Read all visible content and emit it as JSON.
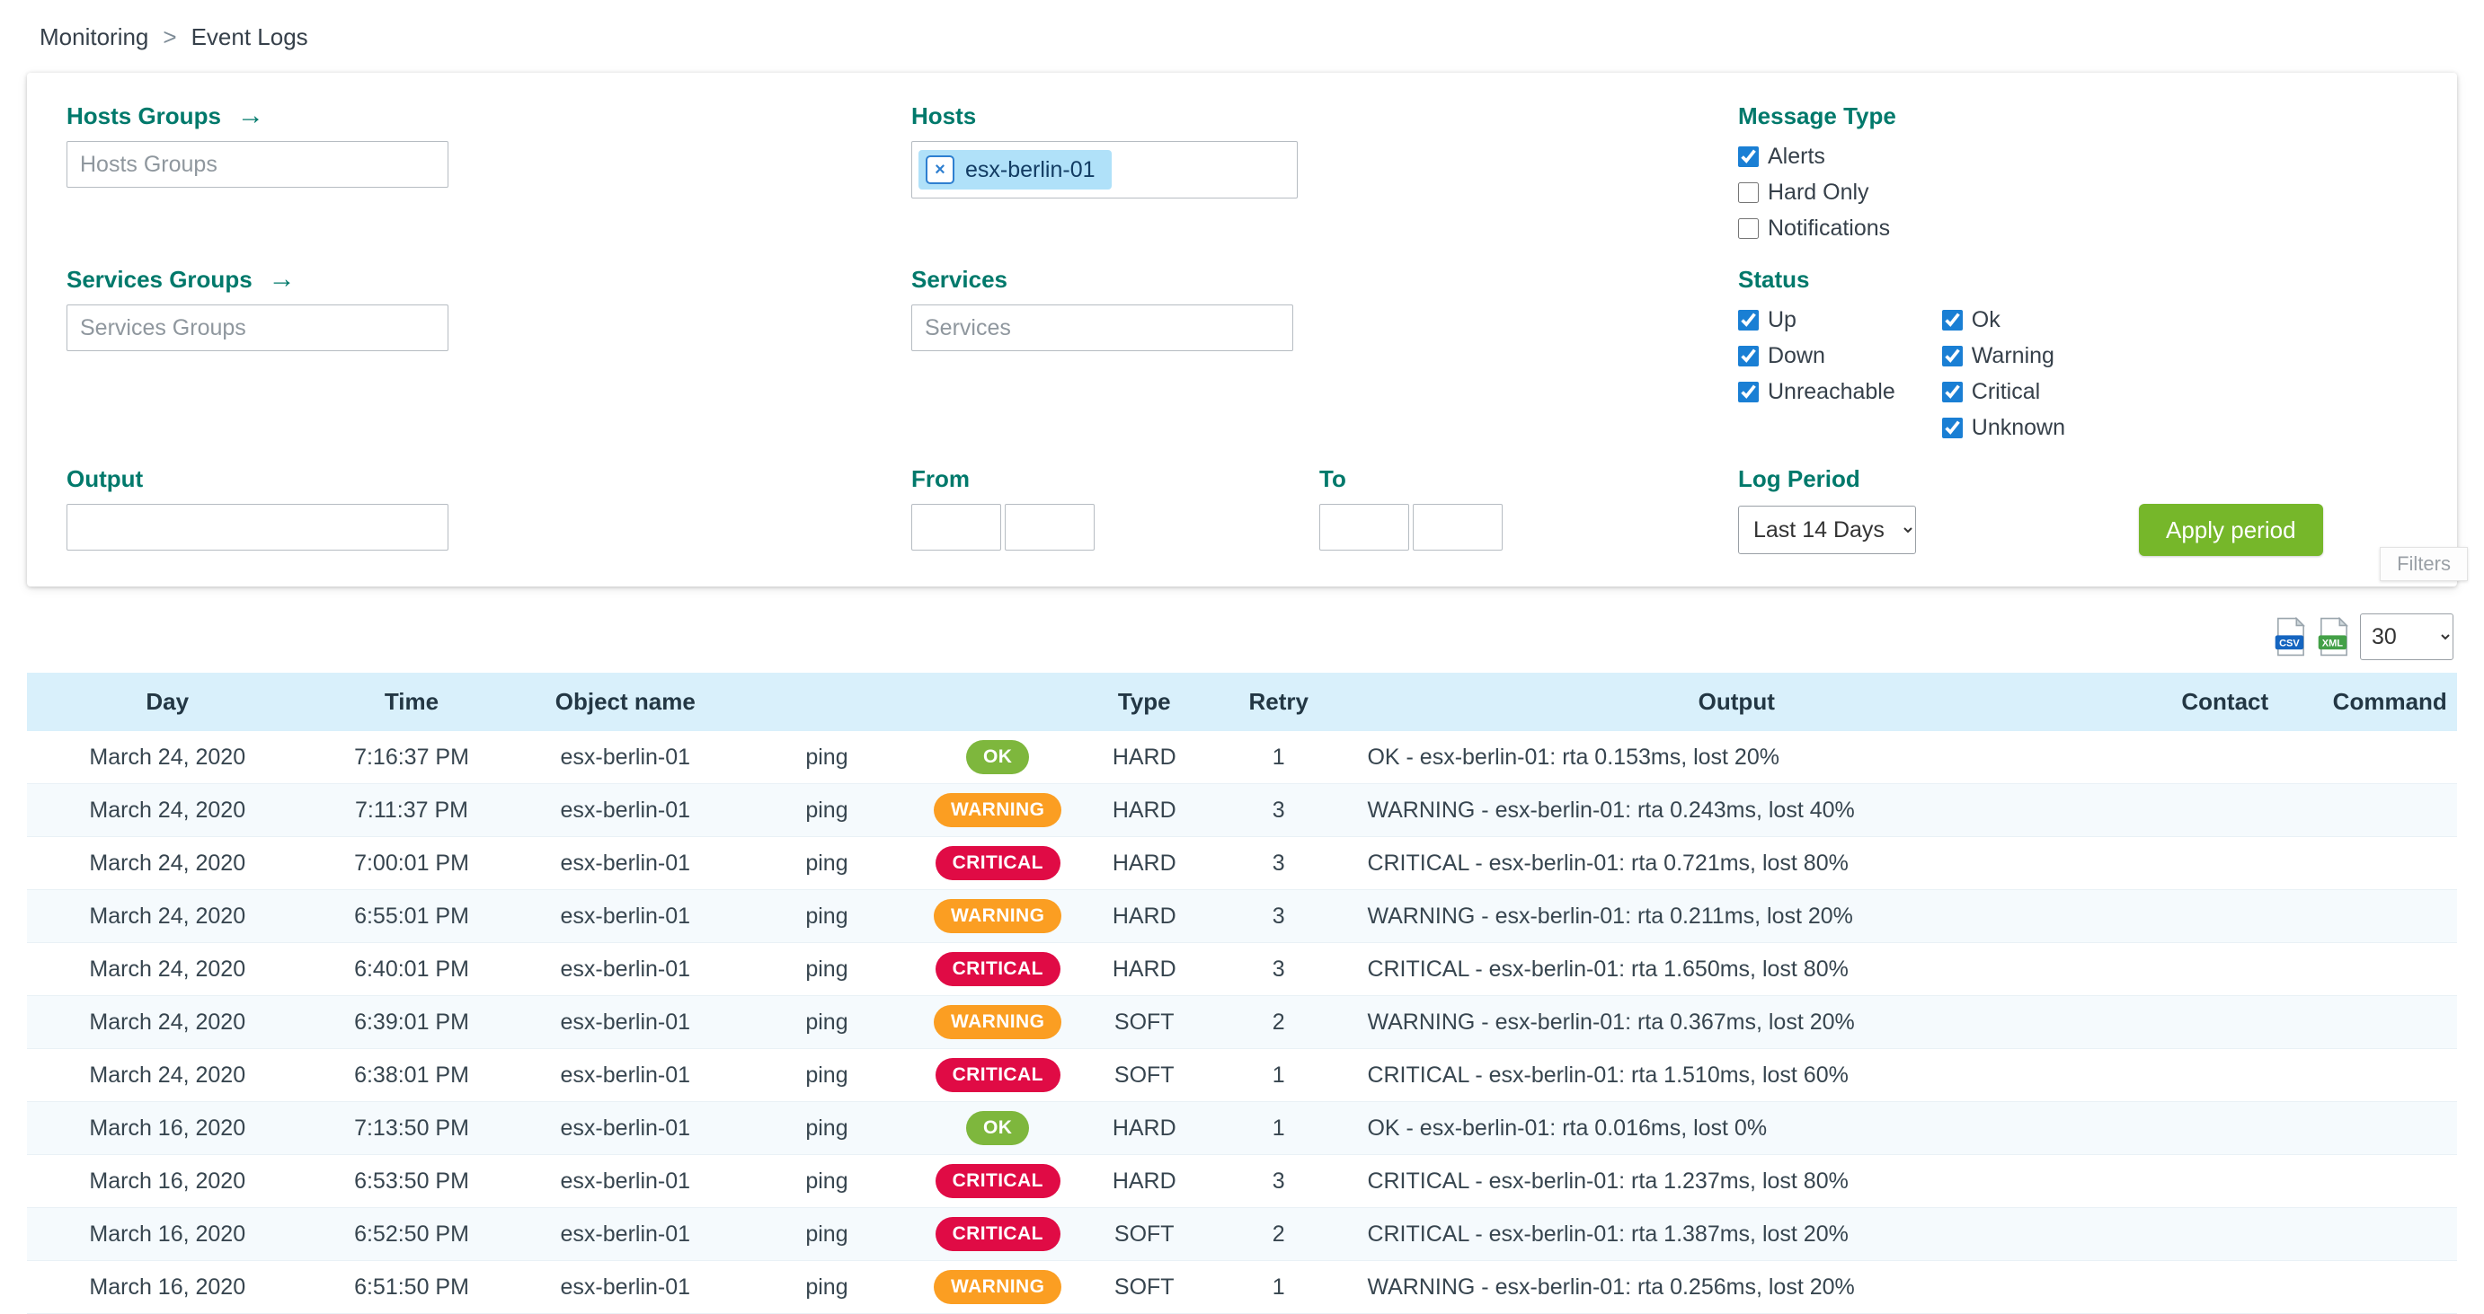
{
  "breadcrumb": {
    "section": "Monitoring",
    "separator": ">",
    "page": "Event Logs"
  },
  "icons": {
    "arrow_right": "→",
    "remove": "×"
  },
  "filter_panel": {
    "hosts_groups": {
      "label": "Hosts Groups",
      "placeholder": "Hosts Groups"
    },
    "services_groups": {
      "label": "Services Groups",
      "placeholder": "Services Groups"
    },
    "output_filter": {
      "label": "Output",
      "value": ""
    },
    "hosts": {
      "label": "Hosts",
      "chips": [
        {
          "text": "esx-berlin-01"
        }
      ]
    },
    "services": {
      "label": "Services",
      "placeholder": "Services"
    },
    "from": {
      "label": "From"
    },
    "to": {
      "label": "To"
    },
    "message_type": {
      "heading": "Message Type",
      "options": [
        {
          "label": "Alerts",
          "checked": true
        },
        {
          "label": "Hard Only",
          "checked": false
        },
        {
          "label": "Notifications",
          "checked": false
        }
      ]
    },
    "status": {
      "heading": "Status",
      "col1": [
        {
          "label": "Up",
          "checked": true
        },
        {
          "label": "Down",
          "checked": true
        },
        {
          "label": "Unreachable",
          "checked": true
        }
      ],
      "col2": [
        {
          "label": "Ok",
          "checked": true
        },
        {
          "label": "Warning",
          "checked": true
        },
        {
          "label": "Critical",
          "checked": true
        },
        {
          "label": "Unknown",
          "checked": true
        }
      ]
    },
    "log_period": {
      "label": "Log Period",
      "selected": "Last 14 Days"
    },
    "apply_button_label": "Apply period",
    "filters_tab_label": "Filters"
  },
  "toolbar": {
    "export_csv": "CSV",
    "export_xml": "XML",
    "page_size": "30"
  },
  "table": {
    "headers": [
      "Day",
      "Time",
      "Object name",
      "",
      "",
      "Type",
      "Retry",
      "Output",
      "Contact",
      "Command"
    ],
    "rows": [
      {
        "day": "March 24, 2020",
        "time": "7:16:37 PM",
        "object": "esx-berlin-01",
        "service": "ping",
        "status": "OK",
        "type": "HARD",
        "retry": "1",
        "output": "OK - esx-berlin-01: rta 0.153ms, lost 20%",
        "contact": "",
        "command": ""
      },
      {
        "day": "March 24, 2020",
        "time": "7:11:37 PM",
        "object": "esx-berlin-01",
        "service": "ping",
        "status": "WARNING",
        "type": "HARD",
        "retry": "3",
        "output": "WARNING - esx-berlin-01: rta 0.243ms, lost 40%",
        "contact": "",
        "command": ""
      },
      {
        "day": "March 24, 2020",
        "time": "7:00:01 PM",
        "object": "esx-berlin-01",
        "service": "ping",
        "status": "CRITICAL",
        "type": "HARD",
        "retry": "3",
        "output": "CRITICAL - esx-berlin-01: rta 0.721ms, lost 80%",
        "contact": "",
        "command": ""
      },
      {
        "day": "March 24, 2020",
        "time": "6:55:01 PM",
        "object": "esx-berlin-01",
        "service": "ping",
        "status": "WARNING",
        "type": "HARD",
        "retry": "3",
        "output": "WARNING - esx-berlin-01: rta 0.211ms, lost 20%",
        "contact": "",
        "command": ""
      },
      {
        "day": "March 24, 2020",
        "time": "6:40:01 PM",
        "object": "esx-berlin-01",
        "service": "ping",
        "status": "CRITICAL",
        "type": "HARD",
        "retry": "3",
        "output": "CRITICAL - esx-berlin-01: rta 1.650ms, lost 80%",
        "contact": "",
        "command": ""
      },
      {
        "day": "March 24, 2020",
        "time": "6:39:01 PM",
        "object": "esx-berlin-01",
        "service": "ping",
        "status": "WARNING",
        "type": "SOFT",
        "retry": "2",
        "output": "WARNING - esx-berlin-01: rta 0.367ms, lost 20%",
        "contact": "",
        "command": ""
      },
      {
        "day": "March 24, 2020",
        "time": "6:38:01 PM",
        "object": "esx-berlin-01",
        "service": "ping",
        "status": "CRITICAL",
        "type": "SOFT",
        "retry": "1",
        "output": "CRITICAL - esx-berlin-01: rta 1.510ms, lost 60%",
        "contact": "",
        "command": ""
      },
      {
        "day": "March 16, 2020",
        "time": "7:13:50 PM",
        "object": "esx-berlin-01",
        "service": "ping",
        "status": "OK",
        "type": "HARD",
        "retry": "1",
        "output": "OK - esx-berlin-01: rta 0.016ms, lost 0%",
        "contact": "",
        "command": ""
      },
      {
        "day": "March 16, 2020",
        "time": "6:53:50 PM",
        "object": "esx-berlin-01",
        "service": "ping",
        "status": "CRITICAL",
        "type": "HARD",
        "retry": "3",
        "output": "CRITICAL - esx-berlin-01: rta 1.237ms, lost 80%",
        "contact": "",
        "command": ""
      },
      {
        "day": "March 16, 2020",
        "time": "6:52:50 PM",
        "object": "esx-berlin-01",
        "service": "ping",
        "status": "CRITICAL",
        "type": "SOFT",
        "retry": "2",
        "output": "CRITICAL - esx-berlin-01: rta 1.387ms, lost 20%",
        "contact": "",
        "command": ""
      },
      {
        "day": "March 16, 2020",
        "time": "6:51:50 PM",
        "object": "esx-berlin-01",
        "service": "ping",
        "status": "WARNING",
        "type": "SOFT",
        "retry": "1",
        "output": "WARNING - esx-berlin-01: rta 0.256ms, lost 20%",
        "contact": "",
        "command": ""
      }
    ]
  },
  "colors": {
    "teal": "#00796b",
    "green": "#76b72a",
    "badge-ok": "#7eb73d",
    "badge-warning": "#fb9e22",
    "badge-critical": "#e00b45",
    "check-blue": "#1a7fd4",
    "chip-bg": "#b0e1f9",
    "header-bg": "#d9f0fb",
    "csv-blue": "#1565c0",
    "xml-green": "#43a047"
  }
}
